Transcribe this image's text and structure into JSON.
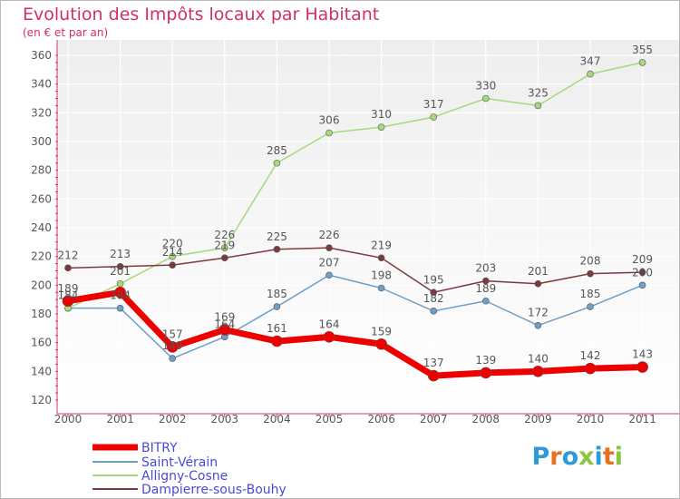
{
  "header": {
    "title": "Evolution des Impôts locaux par Habitant",
    "subtitle": "(en € et par an)"
  },
  "logo": {
    "text": "Proxiti",
    "letter_colors": [
      "#2f9bd6",
      "#e8711c",
      "#2f9bd6",
      "#8cc63f",
      "#2f9bd6",
      "#e8711c",
      "#8cc63f"
    ]
  },
  "chart_data": {
    "type": "line",
    "title": "Evolution des Impôts locaux par Habitant",
    "subtitle": "(en € et par an)",
    "xlabel": "",
    "ylabel": "",
    "x": [
      "2000",
      "2001",
      "2002",
      "2003",
      "2004",
      "2005",
      "2006",
      "2007",
      "2008",
      "2009",
      "2010",
      "2011"
    ],
    "ylim": [
      120,
      360
    ],
    "yticks": [
      120,
      140,
      160,
      180,
      200,
      220,
      240,
      260,
      280,
      300,
      320,
      340,
      360
    ],
    "grid": true,
    "legend_position": "bottom-left",
    "series": [
      {
        "name": "BITRY",
        "color": "#ee0000",
        "line_width": 7,
        "marker_radius": 6,
        "values": [
          189,
          195,
          157,
          169,
          161,
          164,
          159,
          137,
          139,
          140,
          142,
          143
        ],
        "labels": [
          "189",
          "",
          "157",
          "169",
          "161",
          "164",
          "159",
          "137",
          "139",
          "140",
          "142",
          "143"
        ]
      },
      {
        "name": "Saint-Vérain",
        "color": "#6e9fc9",
        "line_width": 1.5,
        "marker_radius": 3.5,
        "values": [
          184,
          184,
          149,
          164,
          185,
          207,
          198,
          182,
          189,
          172,
          185,
          200
        ],
        "labels": [
          "184",
          "184",
          "149",
          "164",
          "185",
          "207",
          "198",
          "182",
          "189",
          "172",
          "185",
          "200"
        ]
      },
      {
        "name": "Alligny-Cosne",
        "color": "#a6d97a",
        "line_width": 1.5,
        "marker_radius": 3.5,
        "values": [
          184,
          201,
          220,
          226,
          285,
          306,
          310,
          317,
          330,
          325,
          347,
          355
        ],
        "labels": [
          "",
          "201",
          "220",
          "226",
          "285",
          "306",
          "310",
          "317",
          "330",
          "325",
          "347",
          "355"
        ]
      },
      {
        "name": "Dampierre-sous-Bouhy",
        "color": "#7b3b3e",
        "line_width": 1.5,
        "marker_radius": 3.5,
        "values": [
          212,
          213,
          214,
          219,
          225,
          226,
          219,
          195,
          203,
          201,
          208,
          209
        ],
        "labels": [
          "212",
          "213",
          "214",
          "219",
          "225",
          "226",
          "219",
          "195",
          "203",
          "201",
          "208",
          "209"
        ]
      }
    ]
  }
}
